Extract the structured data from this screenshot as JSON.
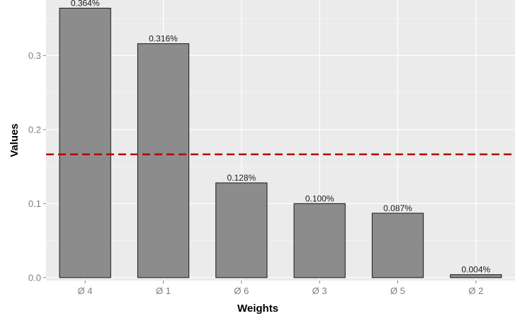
{
  "chart_data": {
    "type": "bar",
    "categories": [
      "Ø 4",
      "Ø 1",
      "Ø 6",
      "Ø 3",
      "Ø 5",
      "Ø 2"
    ],
    "values": [
      0.364,
      0.316,
      0.128,
      0.1,
      0.087,
      0.004
    ],
    "data_labels": [
      "0.364%",
      "0.316%",
      "0.128%",
      "0.100%",
      "0.087%",
      "0.004%"
    ],
    "title": "",
    "xlabel": "Weights",
    "ylabel": "Values",
    "ylim": [
      -0.004,
      0.375
    ],
    "yticks": [
      0.0,
      0.1,
      0.2,
      0.3
    ],
    "ytick_labels": [
      "0.0",
      "0.1",
      "0.2",
      "0.3"
    ],
    "reference_line": {
      "value": 0.1665,
      "style": "dashed"
    },
    "grid": true,
    "legend": "none",
    "colors": {
      "panel_background": "#ebebeb",
      "grid_major": "#ffffff",
      "grid_minor": "#f5f5f5",
      "bar_fill": "#8c8c8c",
      "bar_stroke": "#1a1a1a",
      "reference_line": "#b30000"
    }
  }
}
